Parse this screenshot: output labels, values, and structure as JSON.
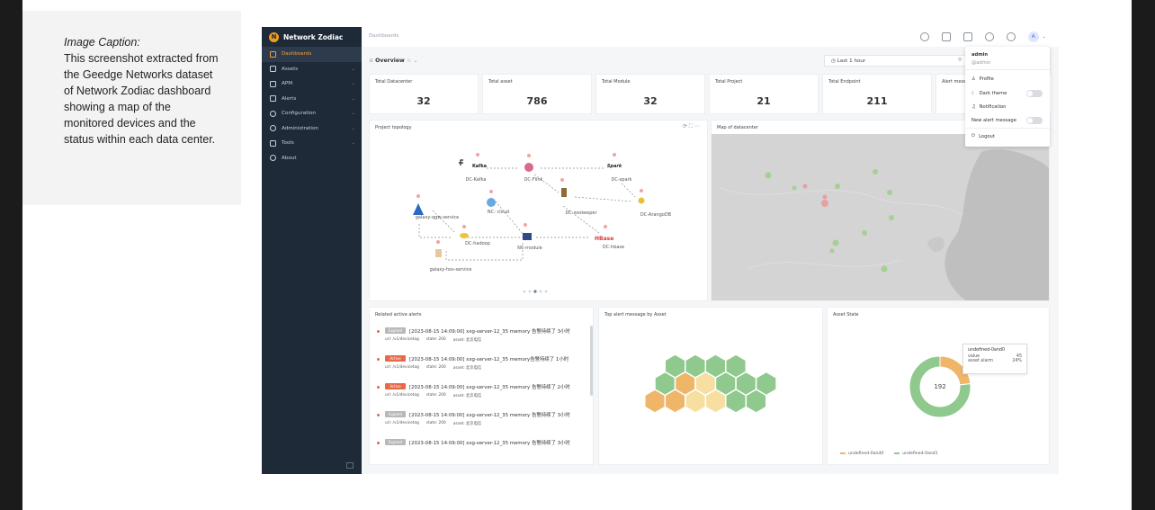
{
  "caption": {
    "title": "Image Caption:",
    "text": "This screenshot extracted from the Geedge Networks dataset of Network Zodiac dashboard showing a map of the monitored devices and the status within each data center."
  },
  "brand": {
    "name": "Network Zodiac"
  },
  "sidebar": {
    "items": [
      {
        "label": "Dashboards",
        "icon": "dashboard-icon",
        "active": true
      },
      {
        "label": "Assets",
        "icon": "assets-icon"
      },
      {
        "label": "APM",
        "icon": "apm-icon"
      },
      {
        "label": "Alerts",
        "icon": "alerts-icon"
      },
      {
        "label": "Configuration",
        "icon": "configuration-icon"
      },
      {
        "label": "Administration",
        "icon": "administration-icon"
      },
      {
        "label": "Tools",
        "icon": "tools-icon"
      },
      {
        "label": "About",
        "icon": "about-icon"
      }
    ]
  },
  "header": {
    "breadcrumb": "Dashboards",
    "avatar_letter": "A"
  },
  "overview": {
    "title": "Overview",
    "time_range": "Last 1 hour"
  },
  "stats": [
    {
      "label": "Total Datacenter",
      "value": "32"
    },
    {
      "label": "Total asset",
      "value": "786"
    },
    {
      "label": "Total Module",
      "value": "32"
    },
    {
      "label": "Total Project",
      "value": "21"
    },
    {
      "label": "Total Endpoint",
      "value": "211"
    },
    {
      "label": "Alert messa",
      "value": ""
    }
  ],
  "topology": {
    "title": "Project topology",
    "nodes": [
      {
        "label": "DC-Kafka",
        "logo": "Kafka"
      },
      {
        "label": "DC-Flink",
        "logo": "Flink"
      },
      {
        "label": "DC-spark",
        "logo": "Spark"
      },
      {
        "label": "NC- cloud"
      },
      {
        "label": "DC-zookeeper",
        "logo": "Zookeeper"
      },
      {
        "label": "DC-ArangoDB",
        "logo": "ArangoDB"
      },
      {
        "label": "galaxy-qgw-service"
      },
      {
        "label": "DC-hadoop",
        "logo": "hadoop"
      },
      {
        "label": "NC-module"
      },
      {
        "label": "DC-hbase",
        "logo": "HBase"
      },
      {
        "label": "galaxy-hos-service"
      }
    ]
  },
  "map": {
    "title": "Map of datacenter"
  },
  "user_menu": {
    "name": "admin",
    "handle": "@admin",
    "items": [
      {
        "label": "Profile",
        "icon": "person-icon"
      },
      {
        "label": "Dark theme",
        "icon": "moon-icon",
        "toggle": false
      },
      {
        "label": "Notification",
        "icon": "bell-icon"
      },
      {
        "label": "New alert message",
        "toggle": false
      },
      {
        "label": "Logout",
        "icon": "power-icon"
      }
    ]
  },
  "alerts": {
    "title": "Related active alerts",
    "items": [
      {
        "badge": "Expired",
        "badge_color": "#b8b8b8",
        "text": "[2023-08-15 14:09:00] xxg-server-12_35 memory 告警持续了 3小时",
        "url": "url: /v1/devicetag",
        "state": "state: 200",
        "asset": "asset: 北京电信"
      },
      {
        "badge": "Active",
        "badge_color": "#e8694a",
        "text": "[2023-08-15 14:09:00] xxg-server-12_35 memory告警持续了 1小时",
        "url": "url: /v1/devicetag",
        "state": "state: 200",
        "asset": "asset: 北京电信"
      },
      {
        "badge": "Active",
        "badge_color": "#e8694a",
        "text": "[2023-08-15 14:09:00] xxg-server-12_35 memory 告警持续了 2小时",
        "url": "url: /v1/devicetag",
        "state": "state: 200",
        "asset": "asset: 北京电信"
      },
      {
        "badge": "Expired",
        "badge_color": "#b8b8b8",
        "text": "[2023-08-15 14:09:00] xxg-server-12_35 memory 告警持续了 3小时",
        "url": "url: /v1/devicetag",
        "state": "state: 200",
        "asset": "asset: 北京电信"
      },
      {
        "badge": "Expired",
        "badge_color": "#b8b8b8",
        "text": "[2023-08-15 14:09:00] xxg-server-12_35 memory 告警持续了 3小时"
      }
    ]
  },
  "top_alert": {
    "title": "Top alert message by Asset"
  },
  "asset_state": {
    "title": "Asset State",
    "center_value": "192",
    "tooltip": {
      "name": "undefined-0and0",
      "value_label": "value",
      "value": "45",
      "share_label": "asset alarm",
      "share": "24%"
    },
    "legend": [
      "undefined-0and0",
      "undefined-0and1"
    ],
    "colors": {
      "a": "#efb66a",
      "b": "#8fc98d"
    }
  },
  "chart_data": {
    "type": "pie",
    "title": "Asset State",
    "categories": [
      "undefined-0and0",
      "undefined-0and1"
    ],
    "values": [
      45,
      147
    ]
  }
}
